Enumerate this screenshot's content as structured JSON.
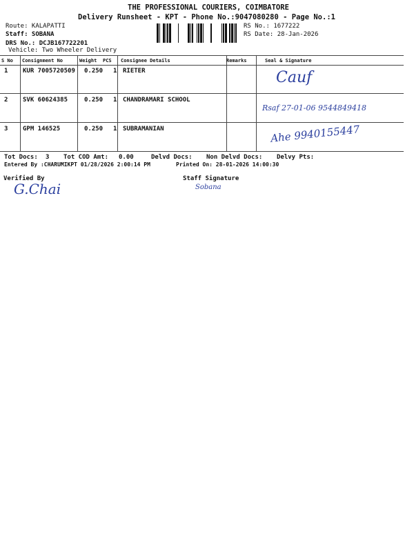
{
  "header": {
    "company": "THE PROFESSIONAL COURIERS, COIMBATORE",
    "subtitle": "Delivery Runsheet - KPT - Phone No.:9047080280 - Page No.:1",
    "route": "Route: KALAPATTI",
    "staff": "Staff: SOBANA",
    "drs_no": "DRS No.: DCJB167722201",
    "vehicle": "Vehicle: Two Wheeler Delivery",
    "rs_no": "RS No.: 1677222",
    "rs_date": "RS Date: 28-Jan-2026"
  },
  "table": {
    "columns": [
      "S No",
      "Consignment No",
      "Weight",
      "PCS",
      "Consignee Details",
      "Remarks",
      "Seal & Signature"
    ],
    "rows": [
      {
        "sno": "1",
        "consignment": "KUR 7005720509",
        "weight": "0.250",
        "pcs": "1",
        "consignee": "RIETER",
        "signature": "Cauf"
      },
      {
        "sno": "2",
        "consignment": "SVK 60624385",
        "weight": "0.250",
        "pcs": "1",
        "consignee": "CHANDRAMARI SCHOOL",
        "signature": "Rsaf 27-01-06 9544849418"
      },
      {
        "sno": "3",
        "consignment": "GPM 146525",
        "weight": "0.250",
        "pcs": "1",
        "consignee": "SUBRAMANIAN",
        "signature": "Ahe 9940155447"
      }
    ]
  },
  "footer": {
    "tot_docs_label": "Tot Docs:",
    "tot_docs": "3",
    "tot_cod_label": "Tot COD Amt:",
    "tot_cod": "0.00",
    "delvd_docs_label": "Delvd Docs:",
    "non_delvd_label": "Non Delvd Docs:",
    "delvy_pts_label": "Delvy Pts:",
    "entered_by": "Entered By :CHARUMIKPT 01/28/2026 2:00:14 PM",
    "printed_on": "Printed On: 28-01-2026 14:00:30",
    "verified_by": "Verified By",
    "verified_signature": "G.Chai",
    "staff_signature_label": "Staff Signature",
    "staff_signature": "Sobana"
  },
  "colors": {
    "ink": "#2b3f9e"
  }
}
